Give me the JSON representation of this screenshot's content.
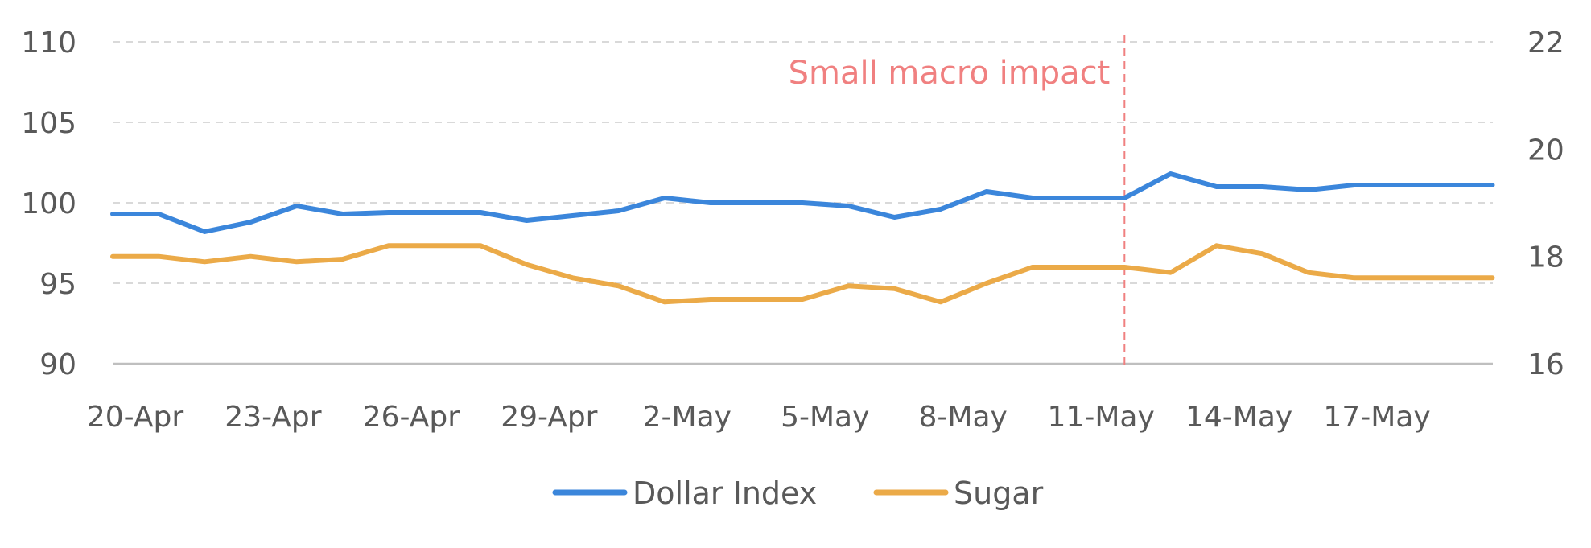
{
  "chart_data": {
    "type": "line",
    "x": [
      "20-Apr",
      "21-Apr",
      "22-Apr",
      "23-Apr",
      "24-Apr",
      "25-Apr",
      "26-Apr",
      "27-Apr",
      "28-Apr",
      "29-Apr",
      "30-Apr",
      "1-May",
      "2-May",
      "3-May",
      "4-May",
      "5-May",
      "6-May",
      "7-May",
      "8-May",
      "9-May",
      "10-May",
      "11-May",
      "12-May",
      "13-May",
      "14-May",
      "15-May",
      "16-May",
      "17-May",
      "18-May",
      "19-May",
      "20-May"
    ],
    "x_tick_labels": [
      "20-Apr",
      "23-Apr",
      "26-Apr",
      "29-Apr",
      "2-May",
      "5-May",
      "8-May",
      "11-May",
      "14-May",
      "17-May"
    ],
    "y_left": {
      "ticks": [
        "110",
        "105",
        "100",
        "95",
        "90"
      ],
      "ylim": [
        90,
        110
      ]
    },
    "y_right": {
      "ticks": [
        "22",
        "20",
        "18",
        "16"
      ],
      "ylim": [
        16,
        22
      ]
    },
    "series": [
      {
        "name": "Dollar Index",
        "axis": "left",
        "color": "#3B86DB",
        "values": [
          99.3,
          99.3,
          98.2,
          98.8,
          99.8,
          99.3,
          99.4,
          99.4,
          99.4,
          98.9,
          99.2,
          99.5,
          100.3,
          100.0,
          100.0,
          100.0,
          99.8,
          99.1,
          99.6,
          100.7,
          100.3,
          100.3,
          100.3,
          101.8,
          101.0,
          101.0,
          100.8,
          101.1,
          101.1,
          101.1,
          101.1
        ]
      },
      {
        "name": "Sugar",
        "axis": "right",
        "color": "#EBAA48",
        "values": [
          18.0,
          18.0,
          17.9,
          18.0,
          17.9,
          17.95,
          18.2,
          18.2,
          18.2,
          17.85,
          17.6,
          17.45,
          17.15,
          17.2,
          17.2,
          17.2,
          17.45,
          17.4,
          17.15,
          17.5,
          17.8,
          17.8,
          17.8,
          17.7,
          18.2,
          18.05,
          17.7,
          17.6,
          17.6,
          17.6,
          17.6
        ]
      }
    ],
    "annotation": {
      "text": "Small macro impact",
      "x": "12-May",
      "color": "#F08080"
    },
    "grid": true,
    "legend": "bottom"
  }
}
